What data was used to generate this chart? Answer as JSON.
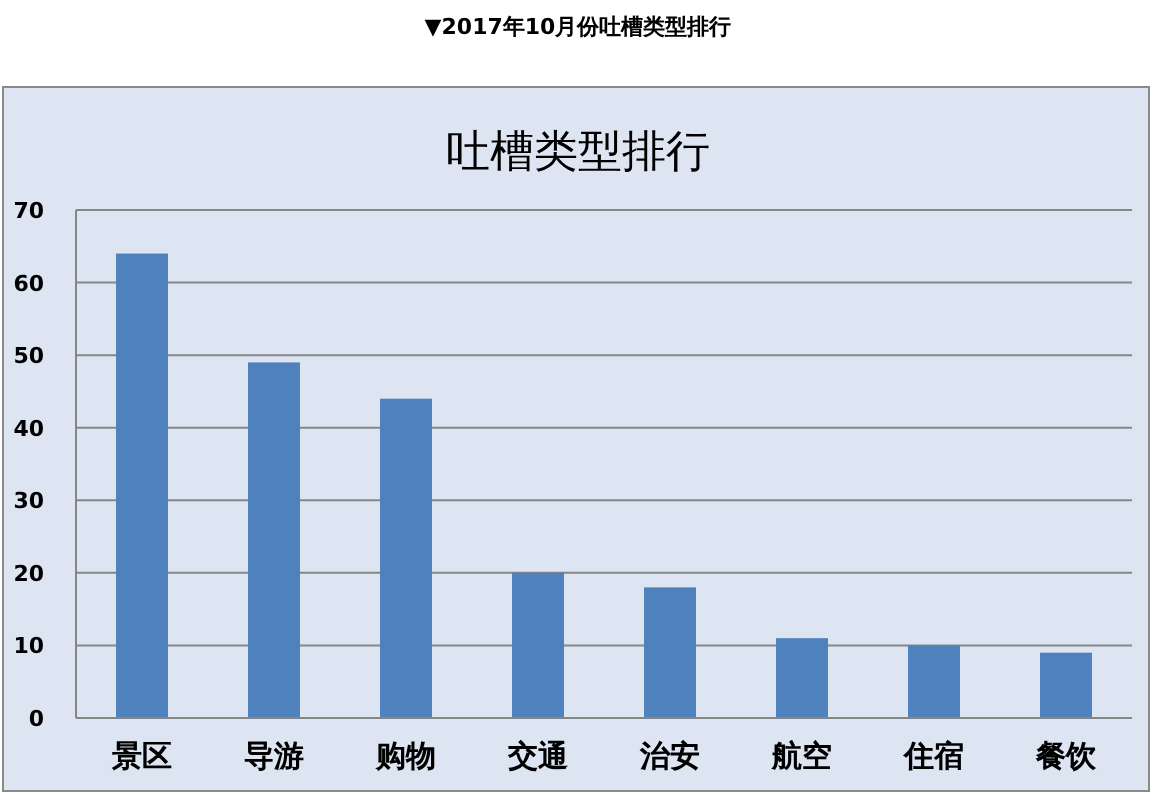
{
  "chart_data": {
    "type": "bar",
    "title": "吐槽类型排行",
    "annotations": [
      "▼2017年10月份吐槽类型排行"
    ],
    "categories": [
      "景区",
      "导游",
      "购物",
      "交通",
      "治安",
      "航空",
      "住宿",
      "餐饮"
    ],
    "values": [
      64,
      49,
      44,
      20,
      18,
      11,
      10,
      9
    ],
    "color": "#4f81bd",
    "ylim": [
      0,
      70
    ],
    "yticks": [
      0,
      10,
      20,
      30,
      40,
      50,
      60,
      70
    ],
    "grid": "y"
  }
}
